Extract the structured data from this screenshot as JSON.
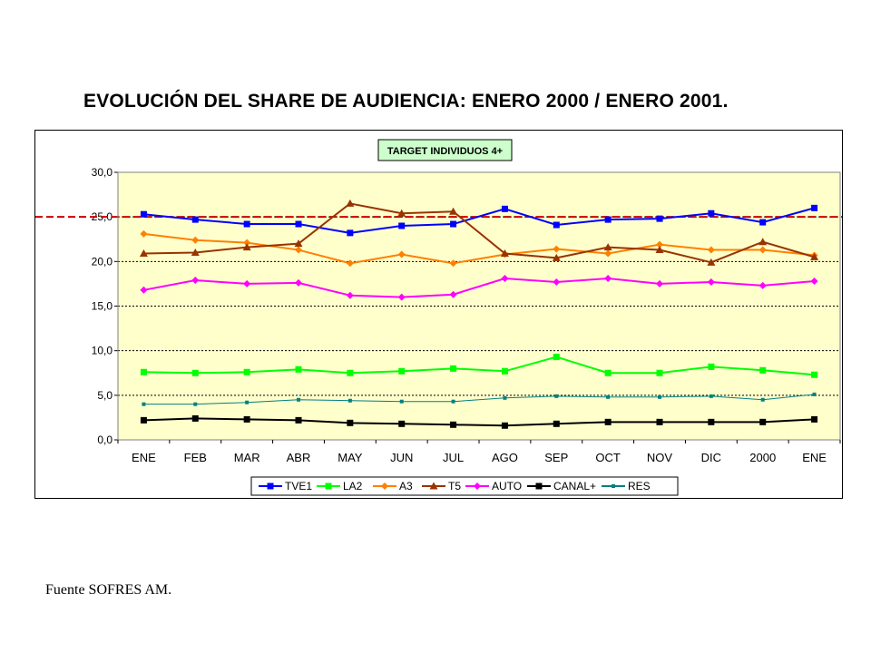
{
  "title": "EVOLUCIÓN DEL SHARE DE AUDIENCIA: ENERO 2000 / ENERO 2001.",
  "source": "Fuente SOFRES AM.",
  "chart_data": {
    "type": "line",
    "target_label": "TARGET INDIVIDUOS 4+",
    "categories": [
      "ENE",
      "FEB",
      "MAR",
      "ABR",
      "MAY",
      "JUN",
      "JUL",
      "AGO",
      "SEP",
      "OCT",
      "NOV",
      "DIC",
      "2000",
      "ENE"
    ],
    "ylim": [
      0,
      30
    ],
    "yticks": [
      "0,0",
      "5,0",
      "10,0",
      "15,0",
      "20,0",
      "25,0",
      "30,0"
    ],
    "reference_line": 25.0,
    "plot_background": "#ffffcc",
    "grid": true,
    "legend_position": "bottom",
    "series": [
      {
        "name": "TVE1",
        "color": "#0000ff",
        "marker": "square",
        "values": [
          25.3,
          24.7,
          24.2,
          24.2,
          23.2,
          24.0,
          24.2,
          25.9,
          24.1,
          24.7,
          24.8,
          25.4,
          24.4,
          26.0
        ]
      },
      {
        "name": "LA2",
        "color": "#00ff00",
        "marker": "square",
        "values": [
          7.6,
          7.5,
          7.6,
          7.9,
          7.5,
          7.7,
          8.0,
          7.7,
          9.3,
          7.5,
          7.5,
          8.2,
          7.8,
          7.3
        ]
      },
      {
        "name": "A3",
        "color": "#ff8000",
        "marker": "diamond",
        "values": [
          23.1,
          22.4,
          22.1,
          21.3,
          19.8,
          20.8,
          19.8,
          20.8,
          21.4,
          20.9,
          21.9,
          21.3,
          21.3,
          20.7
        ]
      },
      {
        "name": "T5",
        "color": "#993300",
        "marker": "triangle",
        "values": [
          20.9,
          21.0,
          21.6,
          22.0,
          26.5,
          25.4,
          25.6,
          20.9,
          20.4,
          21.6,
          21.3,
          19.9,
          22.2,
          20.5
        ]
      },
      {
        "name": "AUTO",
        "color": "#ff00ff",
        "marker": "diamond",
        "values": [
          16.8,
          17.9,
          17.5,
          17.6,
          16.2,
          16.0,
          16.3,
          18.1,
          17.7,
          18.1,
          17.5,
          17.7,
          17.3,
          17.8
        ]
      },
      {
        "name": "CANAL+",
        "color": "#000000",
        "marker": "square",
        "values": [
          2.2,
          2.4,
          2.3,
          2.2,
          1.9,
          1.8,
          1.7,
          1.6,
          1.8,
          2.0,
          2.0,
          2.0,
          2.0,
          2.3
        ]
      },
      {
        "name": "RES",
        "color": "#008080",
        "marker": "dot",
        "values": [
          4.0,
          4.0,
          4.2,
          4.5,
          4.4,
          4.3,
          4.3,
          4.7,
          4.9,
          4.8,
          4.8,
          4.9,
          4.5,
          5.1
        ]
      }
    ]
  }
}
